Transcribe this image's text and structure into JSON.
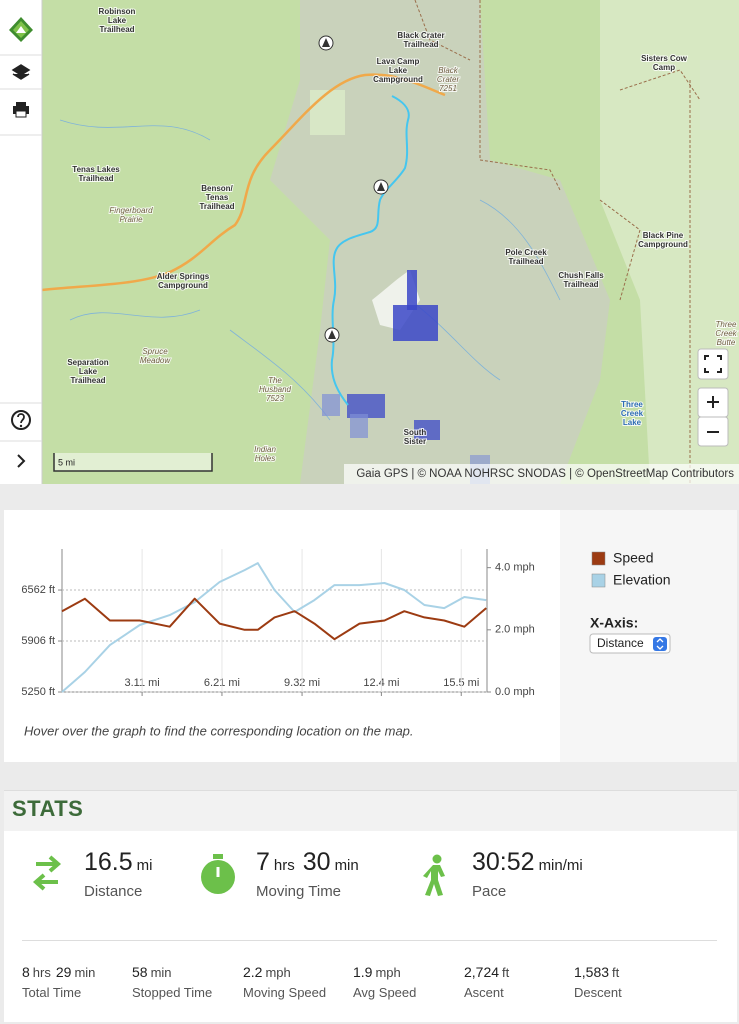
{
  "map": {
    "labels": [
      {
        "lines": [
          "Robinson",
          "Lake",
          "Trailhead"
        ]
      },
      {
        "lines": [
          "Black Crater",
          "Trailhead"
        ]
      },
      {
        "lines": [
          "Lava Camp",
          "Lake",
          "Campground"
        ]
      },
      {
        "lines": [
          "Black",
          "Crater",
          "7251"
        ]
      },
      {
        "lines": [
          "Sisters Cow",
          "Camp"
        ]
      },
      {
        "lines": [
          "Tenas Lakes",
          "Trailhead"
        ]
      },
      {
        "lines": [
          "Benson/",
          "Tenas",
          "Trailhead"
        ]
      },
      {
        "lines": [
          "Fingerboard",
          "Prairie"
        ]
      },
      {
        "lines": [
          "Alder Springs",
          "Campground"
        ]
      },
      {
        "lines": [
          "Black Pine",
          "Campground"
        ]
      },
      {
        "lines": [
          "Pole Creek",
          "Trailhead"
        ]
      },
      {
        "lines": [
          "Chush Falls",
          "Trailhead"
        ]
      },
      {
        "lines": [
          "Separation",
          "Lake",
          "Trailhead"
        ]
      },
      {
        "lines": [
          "Spruce",
          "Meadow"
        ]
      },
      {
        "lines": [
          "The",
          "Husband",
          "7523"
        ]
      },
      {
        "lines": [
          "Indian",
          "Holes"
        ]
      },
      {
        "lines": [
          "Three",
          "Creek",
          "Butte"
        ]
      },
      {
        "lines": [
          "Three",
          "Creek",
          "Lake"
        ]
      },
      {
        "lines": [
          "South",
          "Sister"
        ]
      }
    ],
    "scale": "5 mi",
    "attribution": "Gaia GPS | © NOAA NOHRSC SNODAS | © OpenStreetMap Contributors"
  },
  "chart_data": {
    "type": "line",
    "x": [
      0,
      0.89,
      1.86,
      3.02,
      4.18,
      5.15,
      6.12,
      7.09,
      7.6,
      8.25,
      9.03,
      9.8,
      10.58,
      11.55,
      12.52,
      13.29,
      14.07,
      14.84,
      15.62,
      16.47
    ],
    "xlim": [
      0,
      16.5
    ],
    "xticks": [
      {
        "value": 3.11,
        "label": "3.11 mi"
      },
      {
        "value": 6.21,
        "label": "6.21 mi"
      },
      {
        "value": 9.32,
        "label": "9.32 mi"
      },
      {
        "value": 12.4,
        "label": "12.4 mi"
      },
      {
        "value": 15.5,
        "label": "15.5 mi"
      }
    ],
    "ylim": [
      5250,
      7090
    ],
    "yticks": [
      {
        "value": 5250,
        "label": "5250 ft"
      },
      {
        "value": 5906,
        "label": "5906 ft"
      },
      {
        "value": 6562,
        "label": "6562 ft"
      }
    ],
    "y2lim": [
      0,
      4.6
    ],
    "y2ticks": [
      {
        "value": 0,
        "label": "0.0 mph"
      },
      {
        "value": 2,
        "label": "2.0 mph"
      },
      {
        "value": 4,
        "label": "4.0 mph"
      }
    ],
    "grid": true,
    "series": [
      {
        "name": "Elevation",
        "color": "#a9d2e6",
        "values": [
          5250,
          5507,
          5854,
          6112,
          6240,
          6407,
          6665,
          6819,
          6909,
          6562,
          6279,
          6433,
          6626,
          6626,
          6652,
          6562,
          6369,
          6330,
          6472,
          6433
        ]
      },
      {
        "name": "Speed",
        "color": "#9c3b12",
        "axis": "y2",
        "values": [
          2.6,
          3.0,
          2.3,
          2.3,
          2.1,
          3.0,
          2.2,
          2.0,
          2.0,
          2.4,
          2.6,
          2.2,
          1.7,
          2.2,
          2.3,
          2.6,
          2.4,
          2.3,
          2.1,
          2.7
        ]
      }
    ],
    "legend_order": [
      1,
      0
    ],
    "x_axis_control": {
      "label": "X-Axis:",
      "selected": "Distance"
    },
    "hint": "Hover over the graph to find the corresponding location on the map."
  },
  "stats": {
    "title": "STATS",
    "main": [
      {
        "parts": [
          {
            "value": "16.5",
            "unit": "mi"
          }
        ],
        "label": "Distance"
      },
      {
        "parts": [
          {
            "value": "7",
            "unit": "hrs"
          },
          {
            "value": "30",
            "unit": "min"
          }
        ],
        "label": "Moving Time"
      },
      {
        "parts": [
          {
            "value": "30:52",
            "unit": "min/mi"
          }
        ],
        "label": "Pace"
      }
    ],
    "details": [
      {
        "parts": [
          {
            "value": "8",
            "unit": "hrs"
          },
          {
            "value": "29",
            "unit": "min"
          }
        ],
        "label": "Total Time"
      },
      {
        "parts": [
          {
            "value": "58",
            "unit": "min"
          }
        ],
        "label": "Stopped Time"
      },
      {
        "parts": [
          {
            "value": "2.2",
            "unit": "mph"
          }
        ],
        "label": "Moving Speed"
      },
      {
        "parts": [
          {
            "value": "1.9",
            "unit": "mph"
          }
        ],
        "label": "Avg Speed"
      },
      {
        "parts": [
          {
            "value": "2,724",
            "unit": "ft"
          }
        ],
        "label": "Ascent"
      },
      {
        "parts": [
          {
            "value": "1,583",
            "unit": "ft"
          }
        ],
        "label": "Descent"
      }
    ]
  }
}
